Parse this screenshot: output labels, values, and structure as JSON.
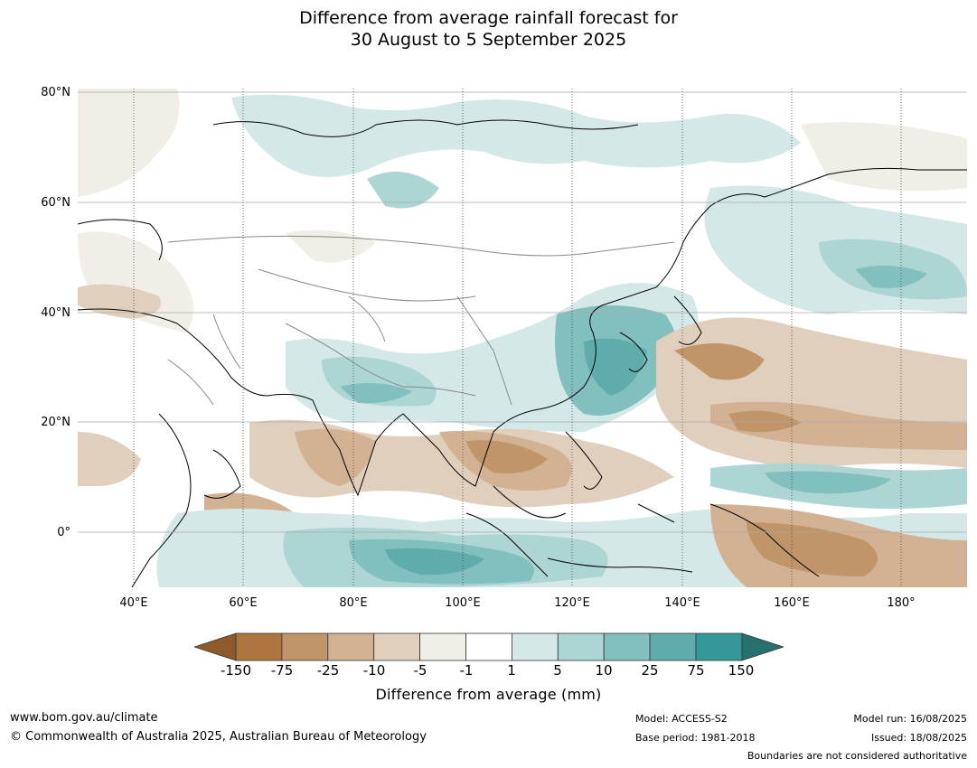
{
  "title_line1": "Difference from average rainfall forecast for",
  "title_line2": "30 August to 5 September 2025",
  "map": {
    "lat_labels": [
      "80°N",
      "60°N",
      "40°N",
      "20°N",
      "0°"
    ],
    "lon_labels": [
      "40°E",
      "60°E",
      "80°E",
      "100°E",
      "120°E",
      "140°E",
      "160°E",
      "180°"
    ],
    "region": "Asia, Indian Ocean and western Pacific"
  },
  "colorbar": {
    "ticks": [
      "-150",
      "-75",
      "-25",
      "-10",
      "-5",
      "-1",
      "1",
      "5",
      "10",
      "25",
      "75",
      "150"
    ],
    "colors": [
      "#8f5a2a",
      "#ad7540",
      "#c1956a",
      "#d3b293",
      "#e1cfbd",
      "#f1ede7",
      "#ffffff",
      "#d4e8e7",
      "#acd5d4",
      "#82c0bf",
      "#5eacac",
      "#349896",
      "#26706f"
    ],
    "label": "Difference from average (mm)"
  },
  "footer": {
    "website": "www.bom.gov.au/climate",
    "copyright": "© Commonwealth of Australia 2025, Australian Bureau of Meteorology",
    "model": "Model: ACCESS-S2",
    "base_period": "Base period: 1981-2018",
    "model_run": "Model run: 16/08/2025",
    "issued": "Issued: 18/08/2025",
    "disclaimer": "Boundaries are not considered authoritative"
  }
}
